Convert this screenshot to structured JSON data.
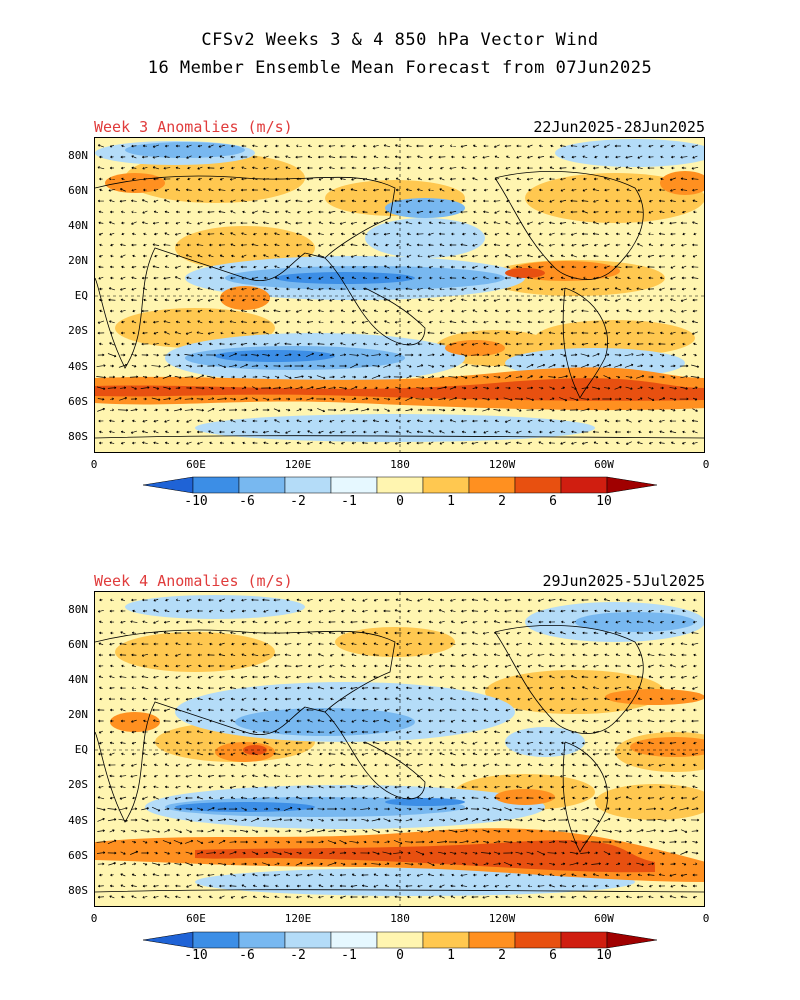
{
  "title_line1": "CFSv2 Weeks 3 & 4 850 hPa Vector Wind",
  "title_line2": "16 Member Ensemble Mean Forecast from 07Jun2025",
  "panels": [
    {
      "label": "Week 3 Anomalies (m/s)",
      "dates": "22Jun2025-28Jun2025"
    },
    {
      "label": "Week 4 Anomalies (m/s)",
      "dates": "29Jun2025-5Jul2025"
    }
  ],
  "lat_labels": [
    "80N",
    "60N",
    "40N",
    "20N",
    "EQ",
    "20S",
    "40S",
    "60S",
    "80S"
  ],
  "lon_labels": [
    "0",
    "60E",
    "120E",
    "180",
    "120W",
    "60W",
    "0"
  ],
  "colorbar": {
    "labels": [
      "-10",
      "-6",
      "-2",
      "-1",
      "0",
      "1",
      "2",
      "6",
      "10"
    ],
    "colors": [
      "#1f63d6",
      "#3c8ee6",
      "#78b8f0",
      "#b4dcf8",
      "#e6f8ff",
      "#fff5b0",
      "#ffc850",
      "#ff9020",
      "#e85010",
      "#d01e10",
      "#a00000"
    ]
  }
}
